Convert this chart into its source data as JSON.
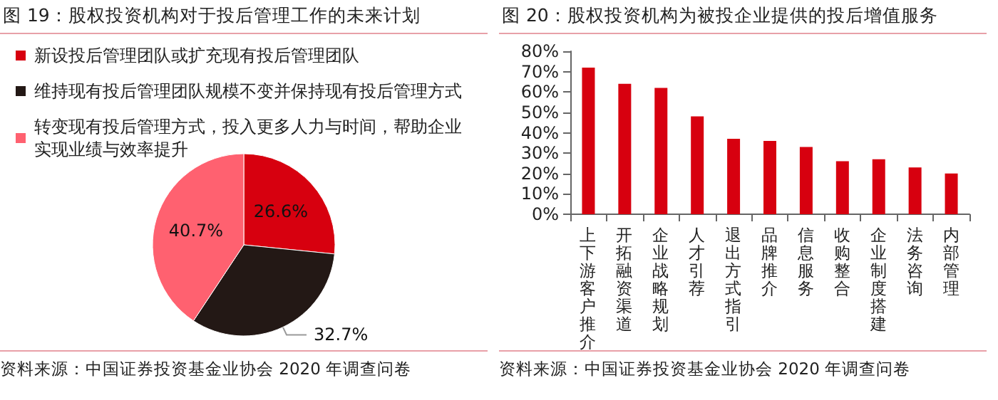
{
  "chart_data": [
    {
      "type": "pie",
      "title": "图 19：股权投资机构对于投后管理工作的未来计划",
      "categories": [
        "新设投后管理团队或扩充现有投后管理团队",
        "维持现有投后管理团队规模不变并保持现有投后管理方式",
        "转变现有投后管理方式，投入更多人力与时间，帮助企业实现业绩与效率提升"
      ],
      "values": [
        26.6,
        32.7,
        40.7
      ],
      "colors": [
        "#d7000f",
        "#231815",
        "#ff6170"
      ],
      "value_labels": [
        "26.6%",
        "32.7%",
        "40.7%"
      ],
      "legend": "top left",
      "annotations": [
        "资料来源：中国证券投资基金业协会 2020 年调查问卷"
      ]
    },
    {
      "type": "bar",
      "title": "图 20：股权投资机构为被投企业提供的投后增值服务",
      "categories": [
        "上下游客户推介",
        "开拓融资渠道",
        "企业战略规划",
        "人才引荐",
        "退出方式指引",
        "品牌推介",
        "信息服务",
        "收购整合",
        "企业制度搭建",
        "法务咨询",
        "内部管理"
      ],
      "values": [
        72,
        64,
        62,
        48,
        37,
        36,
        33,
        26,
        27,
        23,
        20
      ],
      "color": "#d7000f",
      "ylim": [
        0,
        80
      ],
      "yticks": [
        {
          "value": 0,
          "label": "0%"
        },
        {
          "value": 10,
          "label": "10%"
        },
        {
          "value": 20,
          "label": "20%"
        },
        {
          "value": 30,
          "label": "30%"
        },
        {
          "value": 40,
          "label": "40%"
        },
        {
          "value": 50,
          "label": "50%"
        },
        {
          "value": 60,
          "label": "60%"
        },
        {
          "value": 70,
          "label": "70%"
        },
        {
          "value": 80,
          "label": "80%"
        }
      ],
      "grid": false,
      "annotations": [
        "资料来源：中国证券投资基金业协会 2020 年调查问卷"
      ]
    }
  ]
}
